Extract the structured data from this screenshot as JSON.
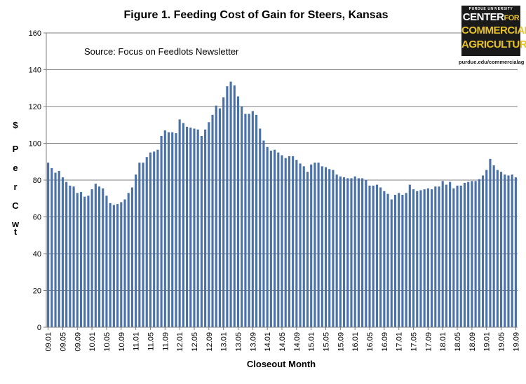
{
  "chart_data": {
    "type": "bar",
    "title": "Figure 1.  Feeding Cost of Gain for Steers, Kansas",
    "source_note": "Source:  Focus on Feedlots Newsletter",
    "xlabel": "Closeout Month",
    "ylabel_chars": [
      "$",
      "P",
      "e",
      "r",
      "C",
      "w",
      "t"
    ],
    "ylim": [
      0,
      160
    ],
    "yticks": [
      0,
      20,
      40,
      60,
      80,
      100,
      120,
      140,
      160
    ],
    "bar_color": "#4a72a8",
    "tick_labels": [
      "09.01",
      "09.05",
      "09.09",
      "10.01",
      "10.05",
      "10.09",
      "11.01",
      "11.05",
      "11.09",
      "12.01",
      "12.05",
      "12.09",
      "13.01",
      "13.05",
      "13.09",
      "14.01",
      "14.05",
      "14.09",
      "15.01",
      "15.05",
      "15.09",
      "16.01",
      "16.05",
      "16.09",
      "17.01",
      "17.05",
      "17.09",
      "18.01",
      "18.05",
      "18.09",
      "19.01",
      "19.05",
      "19.09"
    ],
    "tick_every": 4,
    "values": [
      89.5,
      86.5,
      84,
      85,
      81.5,
      79,
      77,
      76.5,
      73,
      73.5,
      71,
      71.5,
      75,
      78,
      76.5,
      75.5,
      71.5,
      67.5,
      66.5,
      67,
      68,
      69.5,
      73,
      76,
      83,
      89.5,
      89.5,
      92.5,
      95,
      95.5,
      96.5,
      104,
      107,
      106,
      106,
      105.5,
      113,
      111,
      109,
      108.5,
      108,
      107.5,
      104,
      107.5,
      111.5,
      115.5,
      120.5,
      119,
      125,
      131,
      133.5,
      131.5,
      125.5,
      120,
      116,
      116,
      117.5,
      115.5,
      108,
      101.5,
      98,
      96,
      96.5,
      95,
      93.5,
      92,
      93,
      93,
      91,
      89,
      87.5,
      84.5,
      88.5,
      89.5,
      89.5,
      87.5,
      87,
      86,
      85.5,
      83,
      82,
      81.5,
      81,
      81,
      82,
      81,
      81,
      80,
      77,
      77,
      77.5,
      76,
      74,
      72.5,
      69.5,
      72,
      73,
      72,
      73,
      77.5,
      75,
      74,
      74.5,
      75,
      75.5,
      75,
      76.5,
      76.5,
      79.5,
      77.5,
      79,
      75.5,
      77,
      77,
      78.5,
      79,
      79.5,
      79.5,
      80.5,
      82.5,
      85.5,
      91.5,
      88,
      85.5,
      84.5,
      83,
      82.5,
      83,
      81.5
    ]
  },
  "logo": {
    "top_text": "PURDUE UNIVERSITY",
    "line1": "CENTER",
    "line1_small": "FOR",
    "line2": "COMMERCIAL",
    "line3": "AGRICULTURE",
    "url": "purdue.edu/commercialag"
  }
}
